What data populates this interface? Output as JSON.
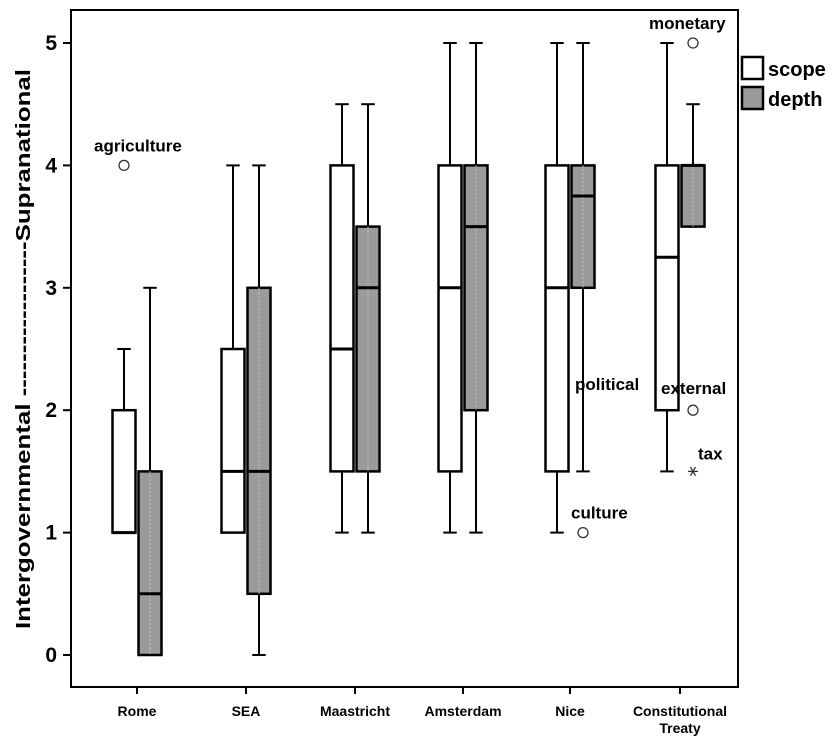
{
  "chart_data": {
    "type": "boxplot",
    "ylabel": "Intergovernmental ------------------Supranational",
    "xlabel": "",
    "ylim": [
      -0.25,
      5.3
    ],
    "yticks": [
      0,
      1,
      2,
      3,
      4,
      5
    ],
    "grid": false,
    "legend_position": "top-right",
    "categories": [
      "Rome",
      "SEA",
      "Maastricht",
      "Amsterdam",
      "Nice",
      "Constitutional Treaty"
    ],
    "series": [
      {
        "name": "scope",
        "fill": "#ffffff",
        "boxes": [
          {
            "whisker_low": 1,
            "q1": 1,
            "median": 1,
            "q3": 2,
            "whisker_high": 2.5
          },
          {
            "whisker_low": 1,
            "q1": 1,
            "median": 1.5,
            "q3": 2.5,
            "whisker_high": 4
          },
          {
            "whisker_low": 1,
            "q1": 1.5,
            "median": 2.5,
            "q3": 4,
            "whisker_high": 4.5
          },
          {
            "whisker_low": 1,
            "q1": 1.5,
            "median": 3,
            "q3": 4,
            "whisker_high": 5
          },
          {
            "whisker_low": 1,
            "q1": 1.5,
            "median": 3,
            "q3": 4,
            "whisker_high": 5
          },
          {
            "whisker_low": 1.5,
            "q1": 2,
            "median": 3.25,
            "q3": 4,
            "whisker_high": 5
          }
        ]
      },
      {
        "name": "depth",
        "fill": "#9a9a9a",
        "boxes": [
          {
            "whisker_low": 0,
            "q1": 0,
            "median": 0.5,
            "q3": 1.5,
            "whisker_high": 3
          },
          {
            "whisker_low": 0,
            "q1": 0.5,
            "median": 1.5,
            "q3": 3,
            "whisker_high": 4
          },
          {
            "whisker_low": 1,
            "q1": 1.5,
            "median": 3,
            "q3": 3.5,
            "whisker_high": 4.5
          },
          {
            "whisker_low": 1,
            "q1": 2,
            "median": 3.5,
            "q3": 4,
            "whisker_high": 5
          },
          {
            "whisker_low": 1.5,
            "q1": 3,
            "median": 3.75,
            "q3": 4,
            "whisker_high": 5
          },
          {
            "whisker_low": 3.5,
            "q1": 3.5,
            "median": 4,
            "q3": 4,
            "whisker_high": 4.5
          }
        ]
      }
    ],
    "outliers": [
      {
        "category": "Rome",
        "series": "scope",
        "value": 4,
        "marker": "circle",
        "label": "agriculture"
      },
      {
        "category": "Nice",
        "series": "depth",
        "value": 1,
        "marker": "circle",
        "label": "culture"
      },
      {
        "category": "Nice",
        "series": "depth",
        "value": 2.15,
        "marker": "none",
        "label": "political"
      },
      {
        "category": "Constitutional Treaty",
        "series": "depth",
        "value": 5,
        "marker": "circle",
        "label": "monetary"
      },
      {
        "category": "Constitutional Treaty",
        "series": "depth",
        "value": 2,
        "marker": "circle",
        "label": "external"
      },
      {
        "category": "Constitutional Treaty",
        "series": "depth",
        "value": 1.5,
        "marker": "star",
        "label": "tax"
      }
    ]
  }
}
